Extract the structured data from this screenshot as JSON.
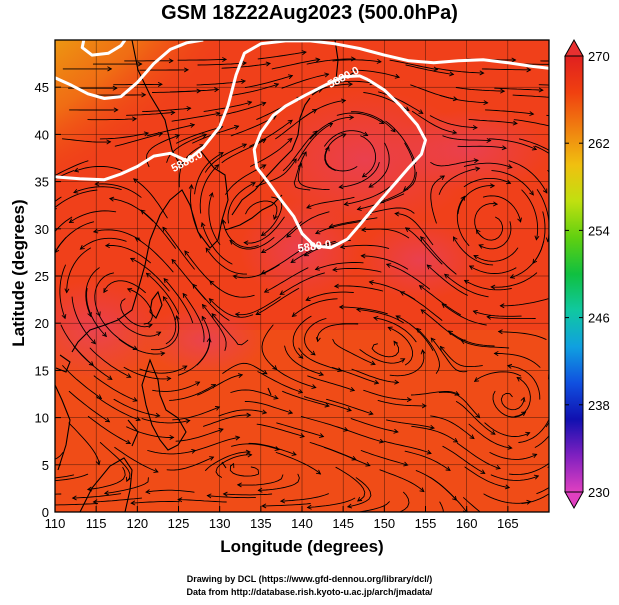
{
  "title": "GSM 18Z22Aug2023 (500.0hPa)",
  "xlabel": "Longitude (degrees)",
  "ylabel": "Latitude (degrees)",
  "credits": {
    "line1": "Drawing by DCL (https://www.gfd-dennou.org/library/dcl/)",
    "line2": "Data from http://database.rish.kyoto-u.ac.jp/arch/jmadata/"
  },
  "chart_data": {
    "type": "heatmap",
    "x_range": [
      110,
      170
    ],
    "y_range": [
      0,
      50
    ],
    "x_ticks": [
      110,
      115,
      120,
      125,
      130,
      135,
      140,
      145,
      150,
      155,
      160,
      165
    ],
    "y_ticks": [
      0,
      5,
      10,
      15,
      20,
      25,
      30,
      35,
      40,
      45
    ],
    "colorbar": {
      "min": 230,
      "max": 270,
      "ticks": [
        230,
        238,
        246,
        254,
        262,
        270
      ],
      "colors": [
        "#e040c0",
        "#8020c0",
        "#1010b0",
        "#1050e0",
        "#10a0e0",
        "#10c8a0",
        "#10c040",
        "#60d010",
        "#c0e010",
        "#f0c010",
        "#f08010",
        "#f04010",
        "#e02020"
      ]
    },
    "contours": [
      {
        "label": "5880.0",
        "points": [
          [
            110,
            35.5
          ],
          [
            113,
            35.3
          ],
          [
            116,
            35.2
          ],
          [
            118,
            35.8
          ],
          [
            120,
            36.6
          ],
          [
            122,
            37.7
          ],
          [
            124,
            38.0
          ],
          [
            126,
            37.2
          ],
          [
            128,
            38.6
          ],
          [
            130,
            40.8
          ],
          [
            131,
            43.0
          ],
          [
            132,
            46.3
          ],
          [
            133,
            48.6
          ],
          [
            135,
            49.6
          ],
          [
            138,
            49.9
          ],
          [
            141,
            49.9
          ],
          [
            144,
            49.6
          ],
          [
            147,
            49.1
          ],
          [
            150,
            48.4
          ],
          [
            153,
            47.8
          ],
          [
            156,
            47.6
          ],
          [
            159,
            47.8
          ],
          [
            162,
            47.9
          ],
          [
            165,
            47.6
          ],
          [
            168,
            47.2
          ],
          [
            170,
            47.0
          ]
        ]
      },
      {
        "label": "5880.0",
        "points": [
          [
            110,
            46.0
          ],
          [
            112,
            45.2
          ],
          [
            114,
            44.3
          ],
          [
            116,
            43.8
          ],
          [
            118,
            44.0
          ],
          [
            120,
            45.5
          ],
          [
            122,
            47.5
          ],
          [
            124,
            49.0
          ],
          [
            126,
            49.7
          ],
          [
            128,
            50.0
          ]
        ]
      },
      {
        "label": "5880.0",
        "points": [
          [
            113.5,
            50.0
          ],
          [
            113.3,
            49.2
          ],
          [
            114.5,
            48.4
          ],
          [
            116.5,
            48.6
          ],
          [
            118,
            49.4
          ],
          [
            118.5,
            50.0
          ]
        ]
      },
      {
        "label": "5880.0",
        "points": [
          [
            148,
            45.8
          ],
          [
            150,
            44.7
          ],
          [
            152,
            43.0
          ],
          [
            154,
            41.0
          ],
          [
            155,
            39.4
          ],
          [
            154.5,
            37.9
          ],
          [
            153,
            36.5
          ],
          [
            151.5,
            35.0
          ],
          [
            150,
            33.5
          ],
          [
            148.5,
            32.0
          ],
          [
            147,
            30.4
          ],
          [
            145.5,
            28.9
          ],
          [
            143.5,
            28.0
          ],
          [
            141.5,
            28.2
          ],
          [
            140,
            29.5
          ],
          [
            139,
            31.3
          ],
          [
            137.5,
            33.0
          ],
          [
            136,
            34.8
          ],
          [
            134.5,
            36.5
          ],
          [
            134.2,
            38.4
          ],
          [
            135,
            40.2
          ],
          [
            136.5,
            42.0
          ],
          [
            138,
            43.0
          ],
          [
            140.5,
            44.2
          ],
          [
            143,
            45.3
          ],
          [
            145,
            46.1
          ],
          [
            147,
            46.2
          ],
          [
            148,
            45.8
          ]
        ]
      }
    ]
  }
}
